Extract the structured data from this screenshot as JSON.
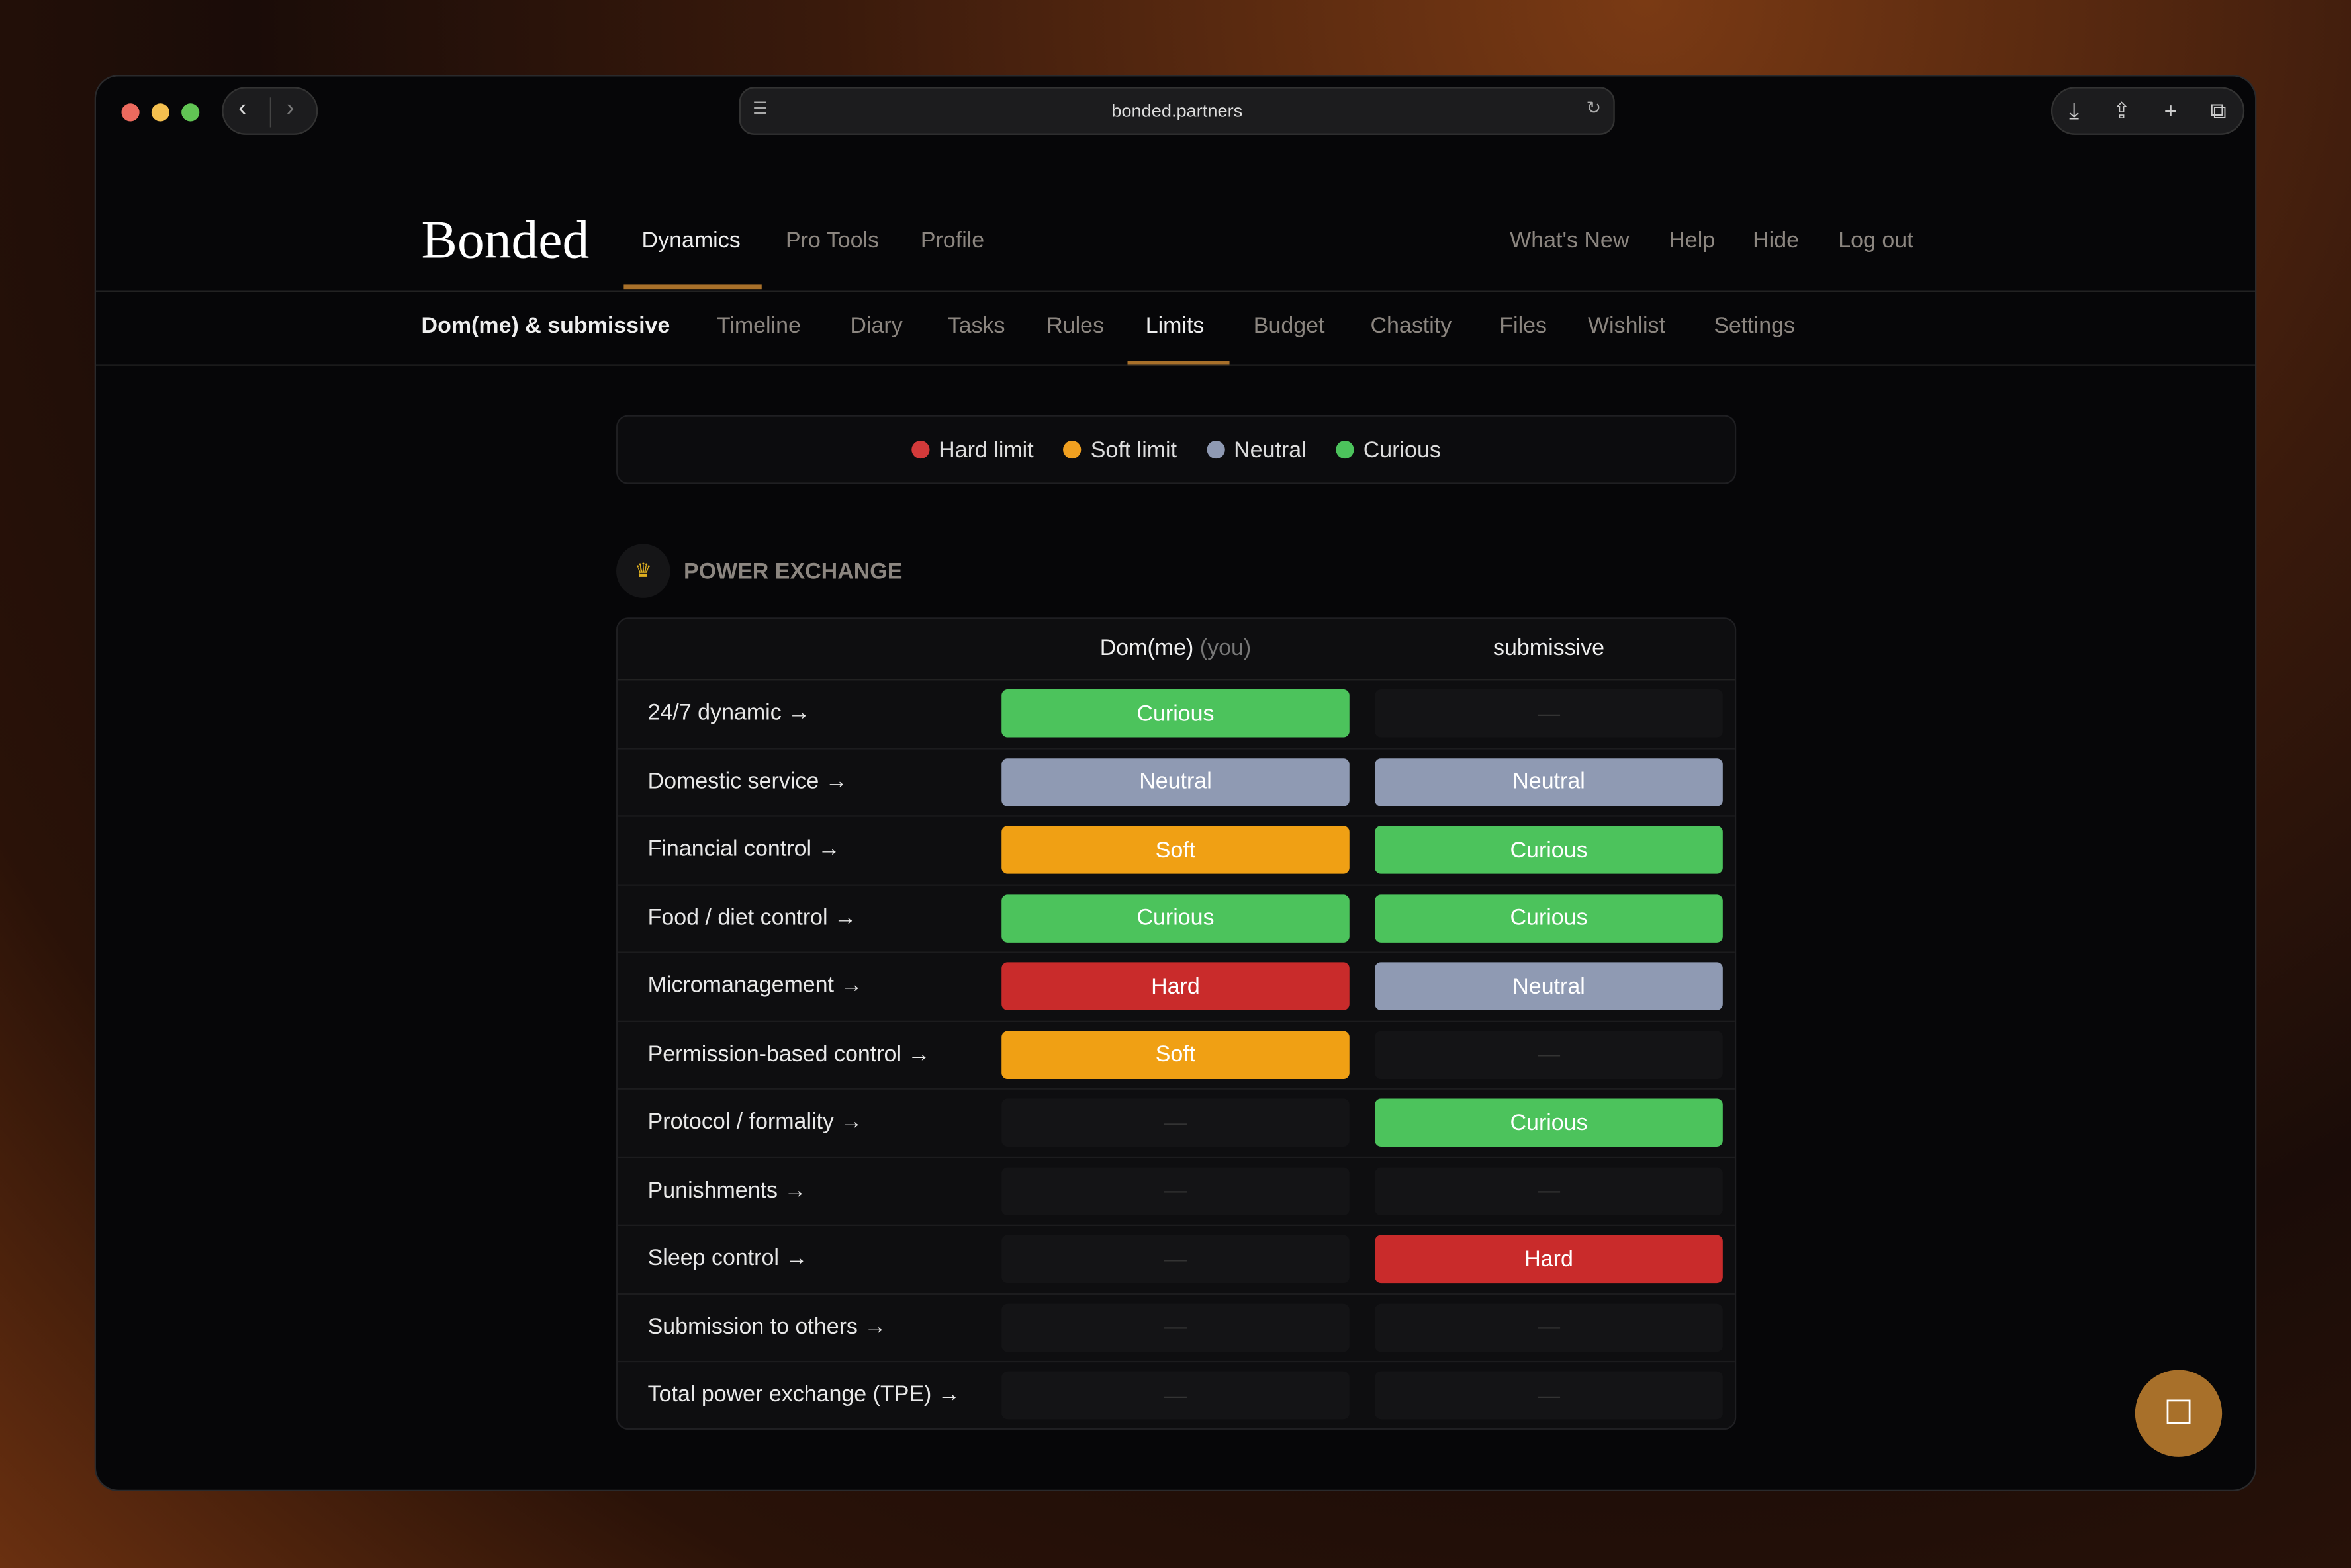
{
  "browser": {
    "url": "bonded.partners"
  },
  "header": {
    "logo": "Bonded",
    "nav": [
      "Dynamics",
      "Pro Tools",
      "Profile"
    ],
    "active_nav": "Dynamics",
    "right_nav": [
      "What's New",
      "Help",
      "Hide",
      "Log out"
    ]
  },
  "subnav": {
    "title": "Dom(me) & submissive",
    "items": [
      "Timeline",
      "Diary",
      "Tasks",
      "Rules",
      "Limits",
      "Budget",
      "Chastity",
      "Files",
      "Wishlist",
      "Settings"
    ],
    "active": "Limits"
  },
  "legend": [
    {
      "label": "Hard limit",
      "color": "#d33a3a"
    },
    {
      "label": "Soft limit",
      "color": "#f0a020"
    },
    {
      "label": "Neutral",
      "color": "#8f9ab3"
    },
    {
      "label": "Curious",
      "color": "#4cc35c"
    }
  ],
  "section": {
    "icon": "crown-icon",
    "title": "POWER EXCHANGE"
  },
  "columns": {
    "dom": "Dom(me)",
    "dom_suffix": "(you)",
    "sub": "submissive"
  },
  "levels": {
    "Curious": "#4cc35c",
    "Neutral": "#8f9ab3",
    "Soft": "#f0a014",
    "Hard": "#c92b2b"
  },
  "empty_label": "—",
  "rows": [
    {
      "label": "24/7 dynamic →",
      "dom": "Curious",
      "sub": null
    },
    {
      "label": "Domestic service →",
      "dom": "Neutral",
      "sub": "Neutral"
    },
    {
      "label": "Financial control →",
      "dom": "Soft",
      "sub": "Curious"
    },
    {
      "label": "Food / diet control →",
      "dom": "Curious",
      "sub": "Curious"
    },
    {
      "label": "Micromanagement →",
      "dom": "Hard",
      "sub": "Neutral"
    },
    {
      "label": "Permission-based control →",
      "dom": "Soft",
      "sub": null
    },
    {
      "label": "Protocol / formality →",
      "dom": null,
      "sub": "Curious"
    },
    {
      "label": "Punishments →",
      "dom": null,
      "sub": null
    },
    {
      "label": "Sleep control →",
      "dom": null,
      "sub": "Hard"
    },
    {
      "label": "Submission to others →",
      "dom": null,
      "sub": null
    },
    {
      "label": "Total power exchange (TPE) →",
      "dom": null,
      "sub": null
    }
  ]
}
